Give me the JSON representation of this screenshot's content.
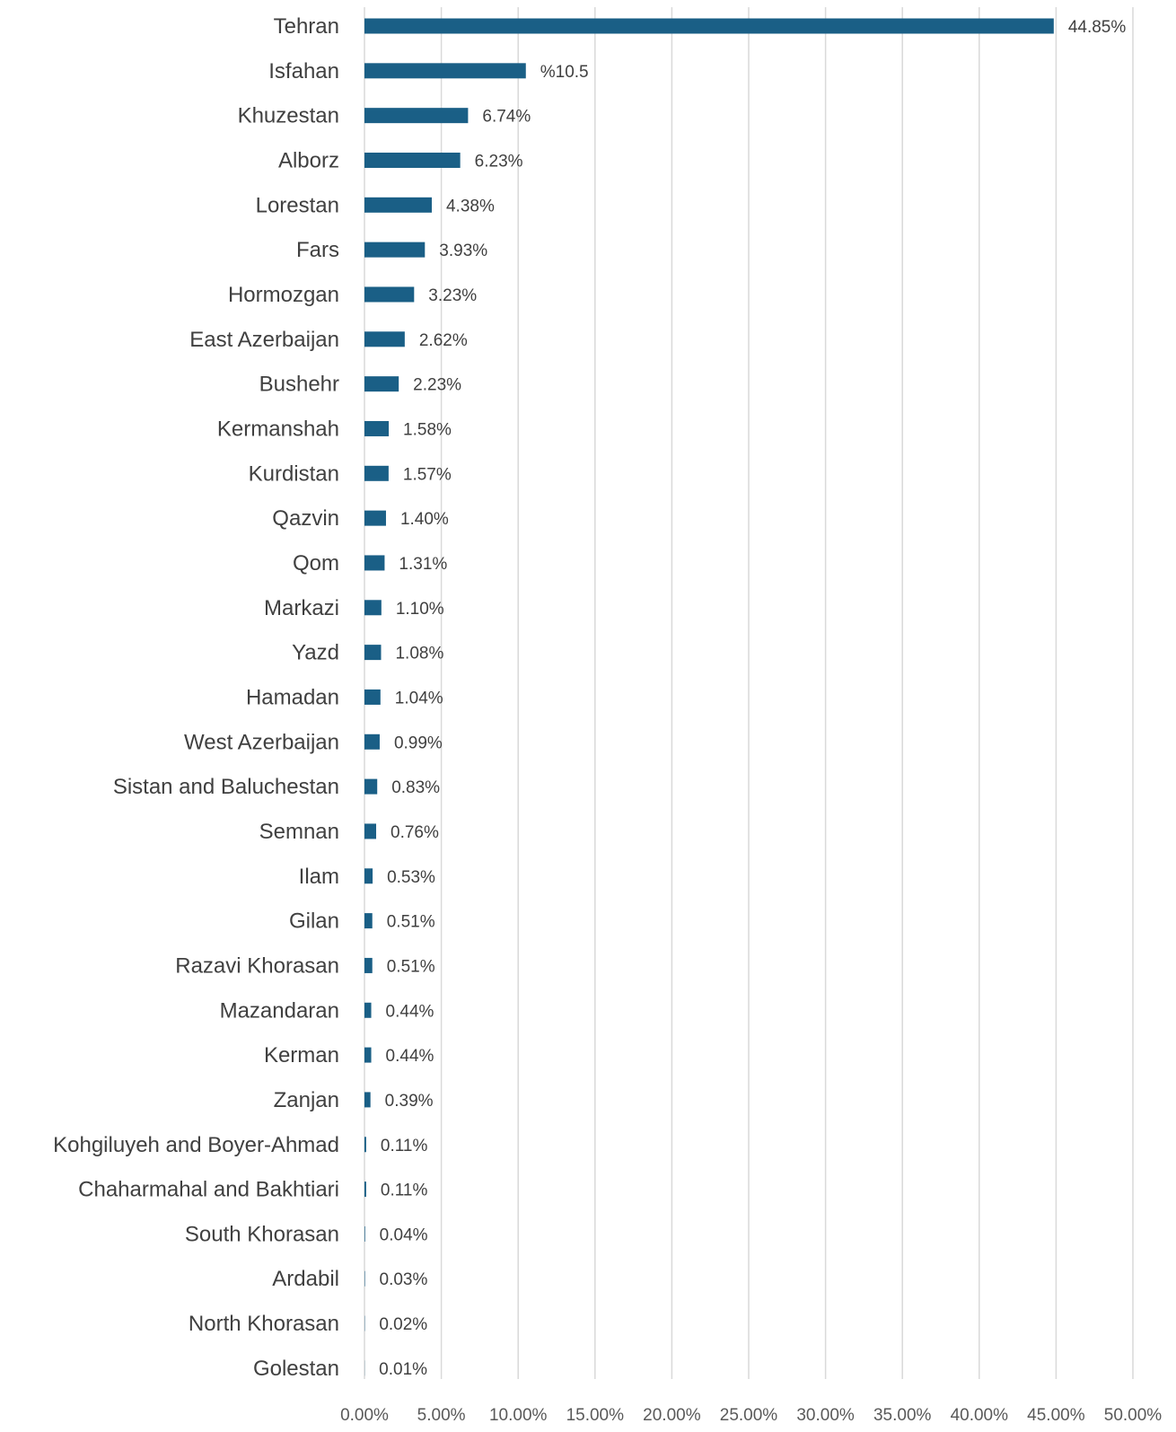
{
  "chart_data": {
    "type": "bar",
    "orientation": "horizontal",
    "categories": [
      "Tehran",
      "Isfahan",
      "Khuzestan",
      "Alborz",
      "Lorestan",
      "Fars",
      "Hormozgan",
      "East Azerbaijan",
      "Bushehr",
      "Kermanshah",
      "Kurdistan",
      "Qazvin",
      "Qom",
      "Markazi",
      "Yazd",
      "Hamadan",
      "West Azerbaijan",
      "Sistan and Baluchestan",
      "Semnan",
      "Ilam",
      "Gilan",
      "Razavi Khorasan",
      "Mazandaran",
      "Kerman",
      "Zanjan",
      "Kohgiluyeh and Boyer-Ahmad",
      "Chaharmahal and Bakhtiari",
      "South Khorasan",
      "Ardabil",
      "North Khorasan",
      "Golestan"
    ],
    "values": [
      44.85,
      10.5,
      6.74,
      6.23,
      4.38,
      3.93,
      3.23,
      2.62,
      2.23,
      1.58,
      1.57,
      1.4,
      1.31,
      1.1,
      1.08,
      1.04,
      0.99,
      0.83,
      0.76,
      0.53,
      0.51,
      0.51,
      0.44,
      0.44,
      0.39,
      0.11,
      0.11,
      0.04,
      0.03,
      0.02,
      0.01
    ],
    "value_labels": [
      "44.85%",
      "%10.5",
      "6.74%",
      "6.23%",
      "4.38%",
      "3.93%",
      "3.23%",
      "2.62%",
      "2.23%",
      "1.58%",
      "1.57%",
      "1.40%",
      "1.31%",
      "1.10%",
      "1.08%",
      "1.04%",
      "0.99%",
      "0.83%",
      "0.76%",
      "0.53%",
      "0.51%",
      "0.51%",
      "0.44%",
      "0.44%",
      "0.39%",
      "0.11%",
      "0.11%",
      "0.04%",
      "0.03%",
      "0.02%",
      "0.01%"
    ],
    "x_ticks": [
      0,
      5,
      10,
      15,
      20,
      25,
      30,
      35,
      40,
      45,
      50
    ],
    "x_tick_labels": [
      "0.00%",
      "5.00%",
      "10.00%",
      "15.00%",
      "20.00%",
      "25.00%",
      "30.00%",
      "35.00%",
      "40.00%",
      "45.00%",
      "50.00%"
    ],
    "xlim": [
      0,
      50
    ],
    "grid": "vertical",
    "bar_color": "#1a5f86"
  }
}
